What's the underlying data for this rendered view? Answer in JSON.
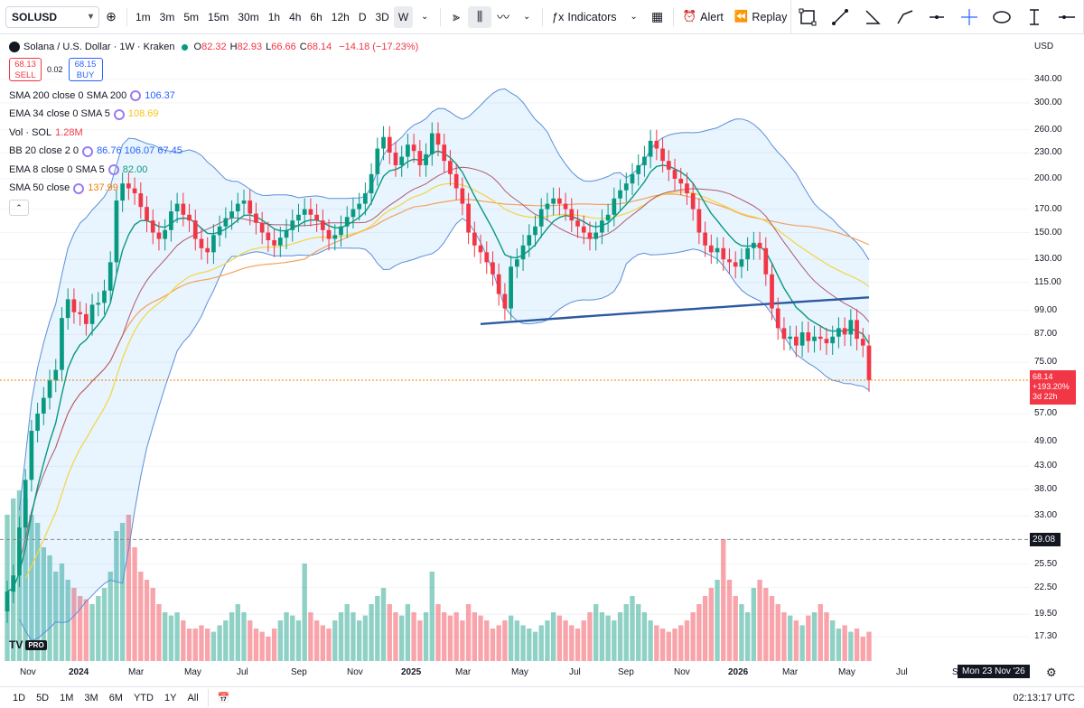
{
  "toolbar": {
    "symbol": "SOLUSD",
    "timeframes": [
      "1m",
      "3m",
      "5m",
      "15m",
      "30m",
      "1h",
      "4h",
      "6h",
      "12h",
      "D",
      "3D",
      "W"
    ],
    "active_timeframe": "W",
    "indicators_label": "Indicators",
    "alert_label": "Alert",
    "replay_label": "Replay"
  },
  "legend": {
    "title": "Solana / U.S. Dollar · 1W · Kraken",
    "ohlc": {
      "o_label": "O",
      "o": "82.32",
      "h_label": "H",
      "h": "82.93",
      "l_label": "L",
      "l": "66.66",
      "c_label": "C",
      "c": "68.14",
      "change": "−14.18 (−17.23%)"
    },
    "sell_price": "68.13",
    "sell_label": "SELL",
    "spread": "0.02",
    "buy_price": "68.15",
    "buy_label": "BUY",
    "indicators": [
      {
        "name": "SMA 200 close 0 SMA 200",
        "values": "106.37",
        "color": "#2962ff"
      },
      {
        "name": "EMA 34 close 0 SMA 5",
        "values": "108.69",
        "color": "#f5c518"
      },
      {
        "name": "Vol · SOL",
        "values": "1.28M",
        "color": "#f23645"
      },
      {
        "name": "BB 20 close 2 0",
        "values": "86.76  106.07  67.45",
        "color": "#2962ff"
      },
      {
        "name": "EMA 8 close 0 SMA 5",
        "values": "82.00",
        "color": "#089981"
      },
      {
        "name": "SMA 50 close",
        "values": "137.99",
        "color": "#f57c00"
      }
    ]
  },
  "price_axis": {
    "currency": "USD",
    "ticks": [
      "340.00",
      "300.00",
      "260.00",
      "230.00",
      "200.00",
      "170.00",
      "150.00",
      "130.00",
      "115.00",
      "99.00",
      "87.00",
      "75.00",
      "57.00",
      "49.00",
      "43.00",
      "38.00",
      "33.00",
      "25.50",
      "22.50",
      "19.50",
      "17.30"
    ],
    "last_price": "68.14",
    "last_change": "+193.20%",
    "last_countdown": "3d 22h",
    "line_label": "29.08"
  },
  "time_axis": {
    "labels": [
      "Nov",
      "2024",
      "Mar",
      "May",
      "Jul",
      "Sep",
      "Nov",
      "2025",
      "Mar",
      "May",
      "Jul",
      "Sep",
      "Nov",
      "2026",
      "Mar",
      "May",
      "Jul",
      "S"
    ],
    "crosshair": "Mon 23 Nov '26"
  },
  "bottom_bar": {
    "ranges": [
      "1D",
      "5D",
      "1M",
      "3M",
      "6M",
      "YTD",
      "1Y",
      "All"
    ],
    "clock": "02:13:17 UTC"
  },
  "logo": {
    "text": "TV",
    "badge": "PRO"
  },
  "chart_data": {
    "type": "candlestick",
    "title": "Solana / U.S. Dollar · 1W · Kraken",
    "y_scale": "log",
    "ylim": [
      15,
      380
    ],
    "x_range": [
      "Oct 2023",
      "Jul 2026"
    ],
    "close": [
      22,
      24,
      31,
      40,
      52,
      57,
      62,
      68,
      72,
      95,
      105,
      98,
      97,
      92,
      102,
      103,
      110,
      128,
      178,
      195,
      190,
      185,
      172,
      160,
      150,
      145,
      152,
      168,
      175,
      165,
      160,
      145,
      138,
      135,
      148,
      155,
      162,
      168,
      175,
      178,
      166,
      158,
      150,
      144,
      140,
      146,
      152,
      160,
      165,
      170,
      165,
      160,
      152,
      145,
      148,
      155,
      163,
      170,
      175,
      185,
      205,
      235,
      250,
      230,
      215,
      225,
      240,
      232,
      215,
      228,
      255,
      240,
      220,
      205,
      190,
      175,
      150,
      140,
      135,
      128,
      120,
      108,
      100,
      125,
      130,
      140,
      148,
      155,
      170,
      175,
      180,
      175,
      170,
      160,
      155,
      150,
      145,
      150,
      160,
      165,
      180,
      188,
      195,
      205,
      215,
      225,
      245,
      235,
      220,
      210,
      200,
      195,
      185,
      170,
      150,
      140,
      135,
      138,
      130,
      128,
      125,
      130,
      138,
      142,
      138,
      120,
      100,
      90,
      85,
      86,
      82,
      88,
      84,
      86,
      85,
      83,
      86,
      90,
      87,
      94,
      85,
      82,
      68.14
    ],
    "volume_relative": [
      0.9,
      1.0,
      1.05,
      1.0,
      0.9,
      0.85,
      0.7,
      0.65,
      0.55,
      0.6,
      0.5,
      0.45,
      0.4,
      0.38,
      0.35,
      0.4,
      0.45,
      0.55,
      0.8,
      0.85,
      0.9,
      0.7,
      0.55,
      0.5,
      0.45,
      0.35,
      0.3,
      0.28,
      0.3,
      0.25,
      0.2,
      0.2,
      0.22,
      0.2,
      0.18,
      0.22,
      0.25,
      0.3,
      0.35,
      0.3,
      0.25,
      0.2,
      0.18,
      0.15,
      0.2,
      0.25,
      0.3,
      0.28,
      0.25,
      0.6,
      0.3,
      0.25,
      0.22,
      0.2,
      0.25,
      0.3,
      0.35,
      0.3,
      0.25,
      0.28,
      0.35,
      0.4,
      0.45,
      0.35,
      0.3,
      0.28,
      0.35,
      0.3,
      0.25,
      0.3,
      0.55,
      0.35,
      0.3,
      0.28,
      0.3,
      0.25,
      0.35,
      0.3,
      0.28,
      0.25,
      0.2,
      0.22,
      0.25,
      0.28,
      0.25,
      0.22,
      0.2,
      0.18,
      0.22,
      0.25,
      0.3,
      0.28,
      0.25,
      0.22,
      0.2,
      0.25,
      0.3,
      0.35,
      0.3,
      0.28,
      0.25,
      0.3,
      0.35,
      0.4,
      0.35,
      0.3,
      0.25,
      0.22,
      0.2,
      0.18,
      0.2,
      0.22,
      0.25,
      0.3,
      0.35,
      0.4,
      0.45,
      0.5,
      0.75,
      0.5,
      0.4,
      0.35,
      0.3,
      0.45,
      0.5,
      0.45,
      0.4,
      0.35,
      0.3,
      0.28,
      0.25,
      0.22,
      0.28,
      0.3,
      0.35,
      0.3,
      0.25,
      0.2,
      0.22,
      0.18,
      0.2,
      0.15,
      0.18
    ],
    "sma200": [
      106.37
    ],
    "last": 68.14,
    "horizontal_line": 29.08
  }
}
